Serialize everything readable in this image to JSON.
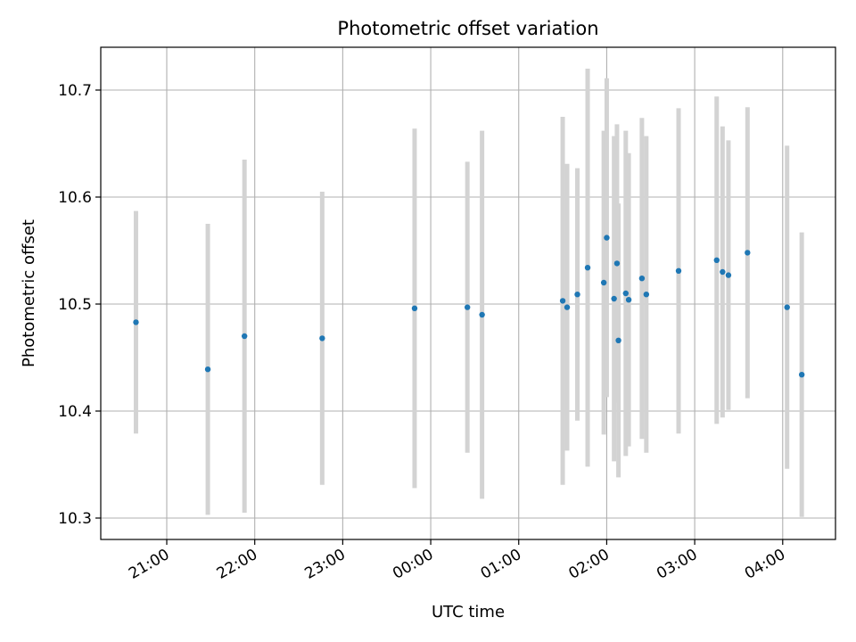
{
  "chart_data": {
    "type": "scatter",
    "title": "Photometric offset variation",
    "xlabel": "UTC time",
    "ylabel": "Photometric offset",
    "xlim": [
      "20:15",
      "04:36"
    ],
    "ylim": [
      10.28,
      10.74
    ],
    "grid": true,
    "legend": "none",
    "marker_color": "#1f77b4",
    "errorbar_color": "#d3d3d3",
    "xticks": [
      {
        "label": "21:00",
        "time": "21:00"
      },
      {
        "label": "22:00",
        "time": "22:00"
      },
      {
        "label": "23:00",
        "time": "23:00"
      },
      {
        "label": "00:00",
        "time": "00:00"
      },
      {
        "label": "01:00",
        "time": "01:00"
      },
      {
        "label": "02:00",
        "time": "02:00"
      },
      {
        "label": "03:00",
        "time": "03:00"
      },
      {
        "label": "04:00",
        "time": "04:00"
      }
    ],
    "yticks": [
      {
        "label": "10.3",
        "value": 10.3
      },
      {
        "label": "10.4",
        "value": 10.4
      },
      {
        "label": "10.5",
        "value": 10.5
      },
      {
        "label": "10.6",
        "value": 10.6
      },
      {
        "label": "10.7",
        "value": 10.7
      }
    ],
    "points": [
      {
        "time": "20:39",
        "y": 10.483,
        "err": 0.104
      },
      {
        "time": "21:28",
        "y": 10.439,
        "err": 0.136
      },
      {
        "time": "21:53",
        "y": 10.47,
        "err": 0.165
      },
      {
        "time": "22:46",
        "y": 10.468,
        "err": 0.137
      },
      {
        "time": "23:49",
        "y": 10.496,
        "err": 0.168
      },
      {
        "time": "00:25",
        "y": 10.497,
        "err": 0.136
      },
      {
        "time": "00:35",
        "y": 10.49,
        "err": 0.172
      },
      {
        "time": "01:30",
        "y": 10.503,
        "err": 0.172
      },
      {
        "time": "01:33",
        "y": 10.497,
        "err": 0.134
      },
      {
        "time": "01:40",
        "y": 10.509,
        "err": 0.118
      },
      {
        "time": "01:47",
        "y": 10.534,
        "err": 0.186
      },
      {
        "time": "01:58",
        "y": 10.52,
        "err": 0.142
      },
      {
        "time": "02:00",
        "y": 10.562,
        "err": 0.149
      },
      {
        "time": "02:05",
        "y": 10.505,
        "err": 0.152
      },
      {
        "time": "02:07",
        "y": 10.538,
        "err": 0.13
      },
      {
        "time": "02:08",
        "y": 10.466,
        "err": 0.128
      },
      {
        "time": "02:13",
        "y": 10.51,
        "err": 0.152
      },
      {
        "time": "02:15",
        "y": 10.504,
        "err": 0.137
      },
      {
        "time": "02:24",
        "y": 10.524,
        "err": 0.15
      },
      {
        "time": "02:27",
        "y": 10.509,
        "err": 0.148
      },
      {
        "time": "02:49",
        "y": 10.531,
        "err": 0.152
      },
      {
        "time": "03:15",
        "y": 10.541,
        "err": 0.153
      },
      {
        "time": "03:19",
        "y": 10.53,
        "err": 0.136
      },
      {
        "time": "03:23",
        "y": 10.527,
        "err": 0.126
      },
      {
        "time": "03:36",
        "y": 10.548,
        "err": 0.136
      },
      {
        "time": "04:03",
        "y": 10.497,
        "err": 0.151
      },
      {
        "time": "04:13",
        "y": 10.434,
        "err": 0.133
      }
    ]
  }
}
